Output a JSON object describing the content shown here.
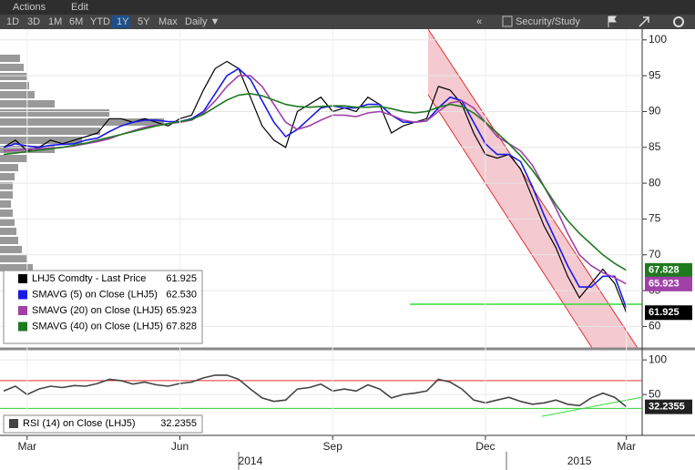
{
  "toolbar": {
    "menu": [
      "Actions",
      "Edit"
    ],
    "periods": [
      "1D",
      "3D",
      "1M",
      "6M",
      "YTD",
      "1Y",
      "5Y",
      "Max"
    ],
    "active_period": 5,
    "frequency": "Daily ▼",
    "collapse": "«",
    "study": "Security/Study"
  },
  "chart_data": [
    {
      "type": "line",
      "categories": [
        null,
        null,
        "Mar",
        null,
        null,
        null,
        null,
        null,
        null,
        null,
        null,
        null,
        null,
        null,
        null,
        "Jun",
        null,
        null,
        null,
        null,
        null,
        null,
        null,
        null,
        null,
        null,
        null,
        null,
        "Sep",
        null,
        null,
        null,
        null,
        null,
        null,
        null,
        null,
        null,
        null,
        null,
        null,
        "Dec",
        null,
        null,
        null,
        null,
        null,
        null,
        null,
        null,
        null,
        null,
        null,
        "Mar"
      ],
      "x_years": [
        null,
        null,
        null,
        null,
        null,
        null,
        null,
        null,
        null,
        null,
        null,
        null,
        null,
        null,
        null,
        null,
        null,
        null,
        null,
        null,
        null,
        "2014",
        null,
        null,
        null,
        null,
        null,
        null,
        null,
        null,
        null,
        null,
        null,
        null,
        null,
        null,
        null,
        null,
        null,
        null,
        null,
        null,
        null,
        null,
        null,
        null,
        null,
        null,
        null,
        "2015",
        null,
        null,
        null,
        null
      ],
      "series": [
        {
          "name": "LHJ5 Comdty - Last Price",
          "color": "#000000",
          "values": [
            85,
            86,
            84.5,
            85,
            86,
            85.5,
            86,
            86.5,
            87,
            89,
            89,
            88.5,
            89,
            88.5,
            88,
            89,
            89.5,
            93,
            96,
            97,
            96,
            92,
            88,
            86,
            85,
            90,
            91,
            92,
            90,
            90.5,
            90,
            92,
            91,
            87,
            88,
            88.5,
            89,
            93.5,
            93,
            91,
            87,
            84,
            83.5,
            84,
            82,
            78,
            74,
            71,
            67,
            64,
            66,
            68,
            66,
            61.925
          ]
        },
        {
          "name": "SMAVG (5) on Close (LHJ5)",
          "color": "#1a1ae6",
          "values": [
            85,
            85.5,
            85.2,
            85,
            85.3,
            85.4,
            85.5,
            86,
            86.3,
            87.2,
            88,
            88.5,
            88.8,
            88.8,
            88.6,
            88.6,
            89,
            90,
            92.5,
            95,
            96,
            94.5,
            91.5,
            88.5,
            86.5,
            87.5,
            89,
            90.5,
            90.8,
            90.5,
            90.5,
            91,
            91,
            89.5,
            88.5,
            88.5,
            88.7,
            90.5,
            92,
            91.5,
            88.5,
            85.5,
            84,
            84,
            83,
            79.5,
            75.5,
            72,
            68.5,
            65.5,
            65.5,
            67,
            67,
            62.53
          ],
          "value_labels": [
            null,
            null,
            null,
            null,
            null,
            null,
            null,
            null,
            null,
            null,
            null,
            null,
            null,
            null,
            null,
            null,
            null,
            null,
            null,
            null,
            null,
            null,
            null,
            null,
            null,
            null,
            null,
            null,
            null,
            null,
            null,
            null,
            null,
            null,
            null,
            null,
            null,
            null,
            null,
            null,
            null,
            null,
            null,
            null,
            null,
            null,
            null,
            null,
            null,
            null,
            null,
            null,
            null,
            "62.530"
          ]
        },
        {
          "name": "SMAVG (20) on Close (LHJ5)",
          "color": "#a040a8",
          "values": [
            84.5,
            84.6,
            84.7,
            84.8,
            84.9,
            85,
            85.2,
            85.5,
            85.8,
            86.2,
            86.8,
            87.3,
            87.8,
            88.1,
            88.3,
            88.5,
            88.8,
            89.8,
            91.5,
            93.5,
            95,
            95,
            93.5,
            91,
            88.5,
            87.5,
            88,
            88.8,
            89.5,
            89.5,
            89.3,
            89.8,
            90,
            89.5,
            88.8,
            88.5,
            88.7,
            90,
            91.2,
            91.5,
            90.5,
            88.5,
            86.5,
            85.5,
            84.5,
            82.5,
            79.5,
            76.5,
            73,
            70,
            68.5,
            67.5,
            66.8,
            65.923
          ]
        },
        {
          "name": "SMAVG (40) on Close (LHJ5)",
          "color": "#1f7a1f",
          "values": [
            84,
            84.2,
            84.4,
            84.6,
            84.8,
            85,
            85.3,
            85.6,
            86,
            86.4,
            86.8,
            87.2,
            87.6,
            88,
            88.3,
            88.6,
            88.9,
            89.6,
            90.6,
            91.6,
            92.3,
            92.5,
            92.2,
            91.6,
            91,
            90.7,
            90.6,
            90.7,
            90.8,
            90.8,
            90.6,
            90.6,
            90.7,
            90.4,
            90,
            89.8,
            90,
            90.6,
            91,
            90.7,
            89.8,
            88.5,
            87,
            85.5,
            83.8,
            81.8,
            79.5,
            77,
            74.8,
            73,
            71.5,
            70,
            68.8,
            67.828
          ]
        }
      ],
      "ylim": [
        57,
        101.5
      ],
      "yticks": [
        60,
        65,
        70,
        75,
        80,
        85,
        90,
        95,
        100
      ],
      "grid": true
    },
    {
      "type": "line",
      "series": [
        {
          "name": "RSI (14) on Close (LHJ5)",
          "color": "#444444",
          "values": [
            55,
            62,
            50,
            58,
            62,
            60,
            63,
            62,
            66,
            72,
            70,
            65,
            68,
            64,
            62,
            66,
            68,
            74,
            78,
            78,
            72,
            58,
            45,
            40,
            42,
            58,
            60,
            65,
            55,
            58,
            55,
            64,
            58,
            45,
            50,
            52,
            55,
            72,
            68,
            58,
            42,
            38,
            42,
            46,
            40,
            36,
            38,
            42,
            36,
            34,
            45,
            52,
            46,
            32.2355
          ]
        }
      ],
      "ylim": [
        -9,
        112
      ],
      "yticks": [
        50,
        100
      ],
      "grid": true,
      "reference_lines": [
        {
          "value": 70,
          "color": "#e03030"
        },
        {
          "value": 30,
          "color": "#33cc33"
        }
      ]
    }
  ]
}
